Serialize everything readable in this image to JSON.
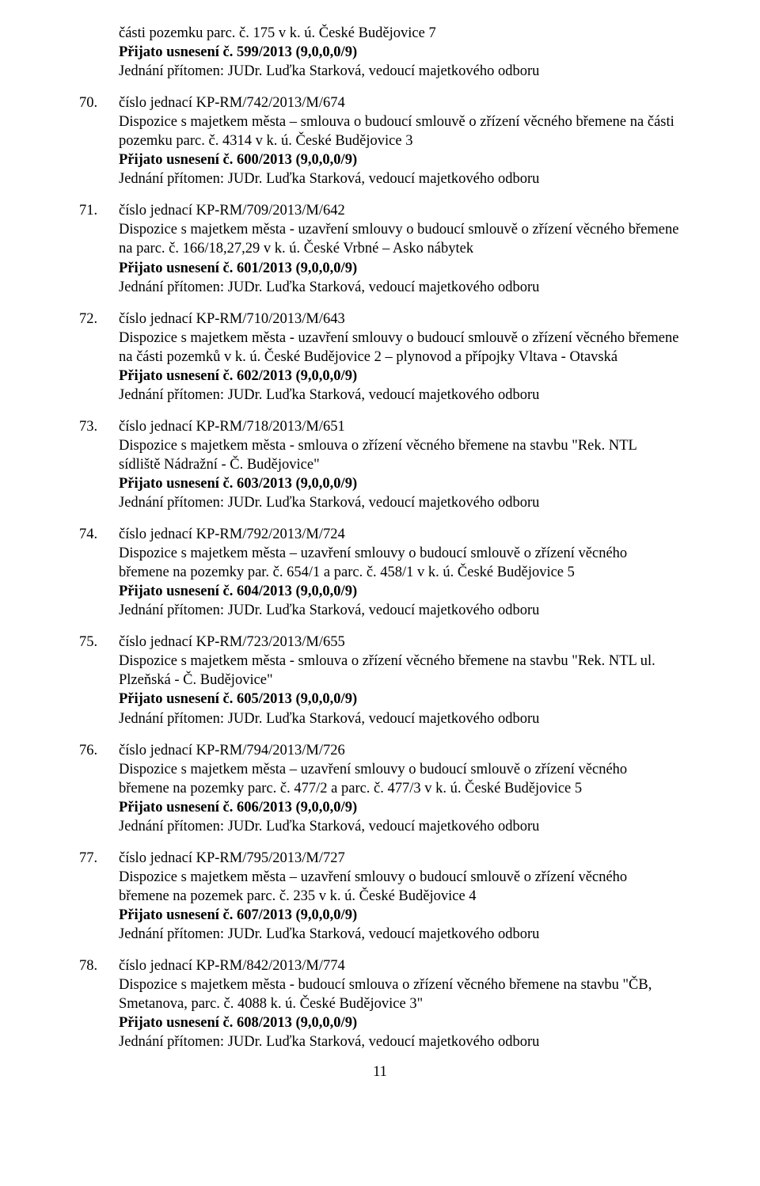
{
  "continuation": {
    "line1": "části pozemku parc. č. 175 v k. ú. České Budějovice 7",
    "resolution": "Přijato usnesení č. 599/2013 (9,0,0,0/9)",
    "attendance": "Jednání přítomen: JUDr. Luďka Starková, vedoucí majetkového odboru"
  },
  "entries": [
    {
      "num": "70.",
      "ref": "číslo jednací KP-RM/742/2013/M/674",
      "desc": "Dispozice s majetkem města – smlouva o budoucí smlouvě o zřízení věcného břemene na části pozemku parc. č. 4314 v k. ú. České Budějovice 3",
      "resolution": "Přijato usnesení č. 600/2013 (9,0,0,0/9)",
      "attendance": "Jednání přítomen: JUDr. Luďka Starková, vedoucí majetkového odboru"
    },
    {
      "num": "71.",
      "ref": "číslo jednací KP-RM/709/2013/M/642",
      "desc": "Dispozice s majetkem města - uzavření smlouvy o budoucí smlouvě o zřízení věcného břemene na parc. č. 166/18,27,29 v k. ú. České Vrbné – Asko nábytek",
      "resolution": "Přijato usnesení č. 601/2013 (9,0,0,0/9)",
      "attendance": "Jednání přítomen: JUDr. Luďka Starková, vedoucí majetkového odboru"
    },
    {
      "num": "72.",
      "ref": "číslo jednací KP-RM/710/2013/M/643",
      "desc": "Dispozice s majetkem města - uzavření smlouvy o budoucí smlouvě o zřízení věcného břemene na části pozemků v k. ú. České Budějovice 2 – plynovod a přípojky Vltava - Otavská",
      "resolution": "Přijato usnesení č. 602/2013 (9,0,0,0/9)",
      "attendance": "Jednání přítomen: JUDr. Luďka Starková, vedoucí majetkového odboru"
    },
    {
      "num": "73.",
      "ref": "číslo jednací KP-RM/718/2013/M/651",
      "desc": "Dispozice s majetkem města - smlouva o zřízení věcného břemene na stavbu \"Rek. NTL sídliště Nádražní - Č. Budějovice\"",
      "resolution": "Přijato usnesení č. 603/2013 (9,0,0,0/9)",
      "attendance": "Jednání přítomen: JUDr. Luďka Starková, vedoucí majetkového odboru"
    },
    {
      "num": "74.",
      "ref": "číslo jednací KP-RM/792/2013/M/724",
      "desc": "Dispozice s majetkem města – uzavření smlouvy o budoucí smlouvě o zřízení věcného břemene na pozemky par. č. 654/1 a parc. č. 458/1 v k. ú. České Budějovice 5",
      "resolution": "Přijato usnesení č. 604/2013 (9,0,0,0/9)",
      "attendance": "Jednání přítomen: JUDr. Luďka Starková, vedoucí majetkového odboru"
    },
    {
      "num": "75.",
      "ref": "číslo jednací KP-RM/723/2013/M/655",
      "desc": "Dispozice s majetkem města - smlouva o zřízení věcného břemene na stavbu \"Rek. NTL ul. Plzeňská - Č. Budějovice\"",
      "resolution": "Přijato usnesení č. 605/2013 (9,0,0,0/9)",
      "attendance": "Jednání přítomen: JUDr. Luďka Starková, vedoucí majetkového odboru"
    },
    {
      "num": "76.",
      "ref": "číslo jednací KP-RM/794/2013/M/726",
      "desc": "Dispozice s majetkem města – uzavření smlouvy o budoucí smlouvě o zřízení věcného břemene na pozemky parc. č. 477/2 a parc. č. 477/3 v k. ú. České Budějovice 5",
      "resolution": "Přijato usnesení č. 606/2013 (9,0,0,0/9)",
      "attendance": "Jednání přítomen: JUDr. Luďka Starková, vedoucí majetkového odboru"
    },
    {
      "num": "77.",
      "ref": "číslo jednací KP-RM/795/2013/M/727",
      "desc": "Dispozice s majetkem města – uzavření smlouvy o budoucí smlouvě o zřízení věcného břemene na pozemek parc. č. 235 v k. ú. České Budějovice 4",
      "resolution": "Přijato usnesení č. 607/2013 (9,0,0,0/9)",
      "attendance": "Jednání přítomen: JUDr. Luďka Starková, vedoucí majetkového odboru"
    },
    {
      "num": "78.",
      "ref": "číslo jednací KP-RM/842/2013/M/774",
      "desc": "Dispozice s majetkem města - budoucí smlouva o zřízení věcného břemene na stavbu \"ČB, Smetanova, parc. č. 4088 k. ú. České Budějovice 3\"",
      "resolution": "Přijato usnesení č. 608/2013 (9,0,0,0/9)",
      "attendance": "Jednání přítomen: JUDr. Luďka Starková, vedoucí majetkového odboru"
    }
  ],
  "pageNumber": "11"
}
